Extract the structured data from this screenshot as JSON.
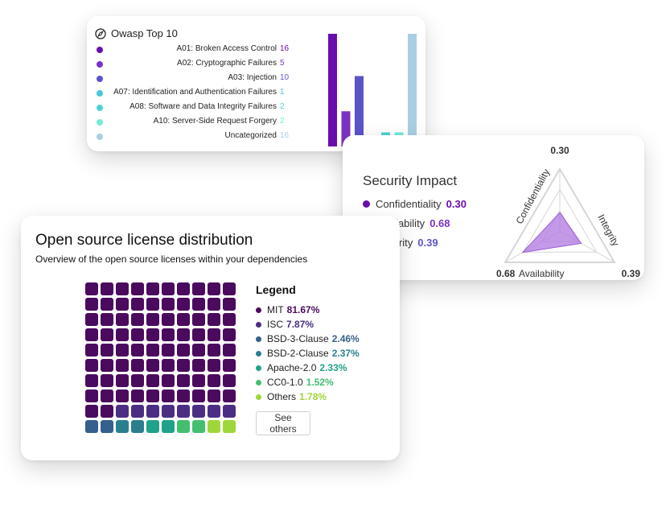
{
  "owasp": {
    "title": "Owasp Top 10",
    "title_icon": "compass-icon",
    "items": [
      {
        "label": "A01: Broken Access Control",
        "count": "16",
        "color": "#6a0dad"
      },
      {
        "label": "A02: Cryptographic Failures",
        "count": "5",
        "color": "#7b32c4"
      },
      {
        "label": "A03: Injection",
        "count": "10",
        "color": "#5b54c8"
      },
      {
        "label": "A07: Identification and Authentication Failures",
        "count": "1",
        "color": "#4bc6d9"
      },
      {
        "label": "A08: Software and Data Integrity Failures",
        "count": "2",
        "color": "#4fd1d6"
      },
      {
        "label": "A10: Server-Side Request Forgery",
        "count": "2",
        "color": "#74ead9"
      },
      {
        "label": "Uncategorized",
        "count": "16",
        "color": "#a9cfe2"
      }
    ],
    "chart_data": {
      "type": "bar",
      "categories": [
        "A01",
        "A02",
        "A03",
        "A07",
        "A08",
        "A10",
        "Uncategorized"
      ],
      "values": [
        16,
        5,
        10,
        1,
        2,
        2,
        16
      ],
      "ylim": [
        0,
        16
      ]
    }
  },
  "security": {
    "title": "Security Impact",
    "items": [
      {
        "label": "Confidentiality",
        "value": "0.30",
        "color": "#6a0dad"
      },
      {
        "label": "Availability",
        "value": "0.68",
        "color": "#7b32c4"
      },
      {
        "label": "Integrity",
        "value": "0.39",
        "color": "#5b54c8"
      }
    ],
    "chart_data": {
      "type": "radar",
      "axes": [
        "Confidentiality",
        "Integrity",
        "Availability"
      ],
      "values": [
        0.3,
        0.39,
        0.68
      ],
      "value_labels": {
        "top": "0.30",
        "bottom_left": "0.68",
        "bottom_right": "0.39"
      },
      "range": [
        0,
        1
      ],
      "fill_color": "#b078e0"
    }
  },
  "license": {
    "title": "Open source license distribution",
    "subtitle": "Overview of the open source licenses within your dependencies",
    "legend_title": "Legend",
    "items": [
      {
        "label": "MIT",
        "pct": "81.67%",
        "color": "#4a0a5e"
      },
      {
        "label": "ISC",
        "pct": "7.87%",
        "color": "#4b2e83"
      },
      {
        "label": "BSD-3-Clause",
        "pct": "2.46%",
        "color": "#355f8d"
      },
      {
        "label": "BSD-2-Clause",
        "pct": "2.37%",
        "color": "#2a7f8e"
      },
      {
        "label": "Apache-2.0",
        "pct": "2.33%",
        "color": "#21a18a"
      },
      {
        "label": "CC0-1.0",
        "pct": "1.52%",
        "color": "#44bf70"
      },
      {
        "label": "Others",
        "pct": "1.78%",
        "color": "#9fd63a"
      }
    ],
    "see_others_label": "See others",
    "chart_data": {
      "type": "waffle",
      "grid": [
        10,
        10
      ],
      "categories": [
        "MIT",
        "ISC",
        "BSD-3-Clause",
        "BSD-2-Clause",
        "Apache-2.0",
        "CC0-1.0",
        "Others"
      ],
      "cell_counts": [
        82,
        8,
        2,
        2,
        2,
        2,
        2
      ]
    }
  }
}
